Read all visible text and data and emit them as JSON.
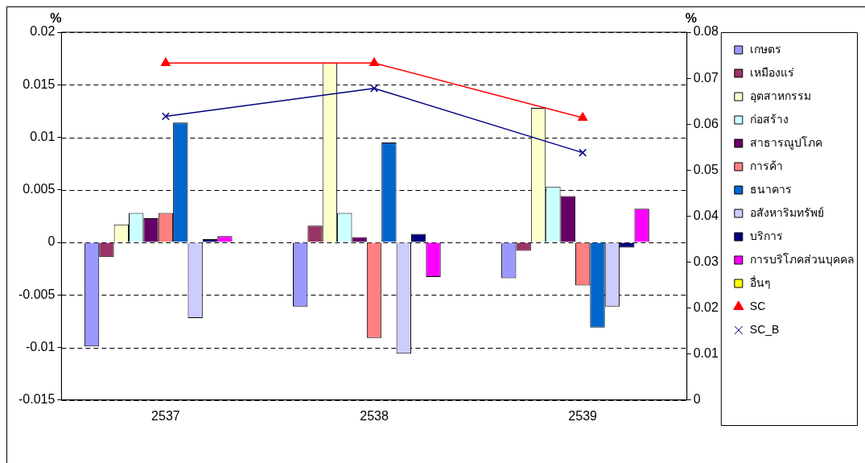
{
  "chart_data": {
    "type": "bar",
    "ylabel": "%",
    "y2label": "%",
    "categories": [
      "2537",
      "2538",
      "2539"
    ],
    "ylim": [
      -0.015,
      0.02
    ],
    "yticks": [
      -0.015,
      -0.01,
      -0.005,
      0,
      0.005,
      0.01,
      0.015,
      0.02
    ],
    "y2lim": [
      0,
      0.08
    ],
    "y2ticks": [
      0,
      0.01,
      0.02,
      0.03,
      0.04,
      0.05,
      0.06,
      0.07,
      0.08
    ],
    "grid": "y",
    "legend": "right",
    "series": [
      {
        "name": "เกษตร",
        "color": "#9999ff",
        "values": [
          -0.0099,
          -0.0061,
          -0.0034
        ]
      },
      {
        "name": "เหมืองแร่",
        "color": "#993366",
        "values": [
          -0.0014,
          0.0016,
          -0.0008
        ]
      },
      {
        "name": "อุตสาหกรรม",
        "color": "#ffffcc",
        "values": [
          0.0017,
          0.0171,
          0.0128
        ]
      },
      {
        "name": "ก่อสร้าง",
        "color": "#ccffff",
        "values": [
          0.0028,
          0.0028,
          0.0053
        ]
      },
      {
        "name": "สาธารณูปโภค",
        "color": "#660066",
        "values": [
          0.0023,
          0.0005,
          0.0044
        ]
      },
      {
        "name": "การค้า",
        "color": "#ff8080",
        "values": [
          0.0028,
          -0.0091,
          -0.0041
        ]
      },
      {
        "name": "ธนาคาร",
        "color": "#0066cc",
        "values": [
          0.0114,
          0.0095,
          -0.0081
        ]
      },
      {
        "name": "อสังหาริมทรัพย์",
        "color": "#ccccff",
        "values": [
          -0.0072,
          -0.0106,
          -0.0061
        ]
      },
      {
        "name": "บริการ",
        "color": "#000080",
        "values": [
          0.0003,
          0.0008,
          -0.0005
        ]
      },
      {
        "name": "การบริโภคส่วนบุคคล",
        "color": "#ff00ff",
        "values": [
          0.0006,
          -0.0033,
          0.0032
        ]
      },
      {
        "name": "อื่นๆ",
        "color": "#ffff00",
        "values": [
          0,
          0,
          0
        ]
      },
      {
        "name": "SC",
        "type": "line",
        "axis": "y2",
        "marker": "triangle",
        "color": "#ff0000",
        "values": [
          0.0733,
          0.0733,
          0.0614
        ]
      },
      {
        "name": "SC_B",
        "type": "line",
        "axis": "y2",
        "marker": "cross",
        "color": "#000080",
        "values": [
          0.0617,
          0.0678,
          0.0538
        ]
      }
    ]
  }
}
